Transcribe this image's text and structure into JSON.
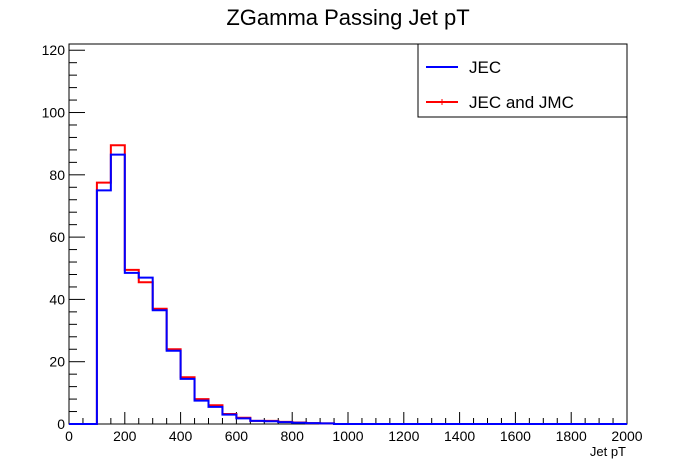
{
  "chart_data": {
    "type": "histogram",
    "title": "ZGamma Passing Jet pT",
    "xlabel": "Jet pT",
    "ylabel": "",
    "xlim": [
      0,
      2000
    ],
    "ylim": [
      0,
      122
    ],
    "bin_width": 50,
    "x_tick_labels": [
      "0",
      "200",
      "400",
      "600",
      "800",
      "1000",
      "1200",
      "1400",
      "1600",
      "1800",
      "2000"
    ],
    "y_tick_labels": [
      "0",
      "20",
      "40",
      "60",
      "80",
      "100",
      "120"
    ],
    "x_bin_edges": [
      0,
      50,
      100,
      150,
      200,
      250,
      300,
      350,
      400,
      450,
      500,
      550,
      600,
      650,
      700,
      750,
      800,
      850,
      900,
      950,
      1000,
      1050,
      1100,
      1150,
      1200,
      1250,
      1300,
      1350,
      1400,
      1450,
      1500,
      1550,
      1600,
      1650,
      1700,
      1750,
      1800,
      1850,
      1900,
      1950,
      2000
    ],
    "series": [
      {
        "name": "JEC and JMC",
        "color": "#ff0000",
        "values": [
          0,
          0,
          77.5,
          89.5,
          49.5,
          45.5,
          37,
          24,
          15,
          8,
          6,
          3.2,
          2,
          1,
          1,
          0.7,
          0.5,
          0.3,
          0.2,
          0,
          0,
          0,
          0,
          0,
          0,
          0,
          0,
          0,
          0,
          0,
          0,
          0,
          0,
          0,
          0,
          0,
          0,
          0,
          0,
          0
        ]
      },
      {
        "name": "JEC",
        "color": "#0000ff",
        "values": [
          0,
          0,
          75,
          86.5,
          48.5,
          47,
          36.5,
          23.5,
          14.5,
          7.5,
          5.5,
          3,
          1.8,
          1,
          0.9,
          0.6,
          0.4,
          0.3,
          0.2,
          0,
          0,
          0,
          0,
          0,
          0,
          0,
          0,
          0,
          0,
          0,
          0,
          0,
          0,
          0,
          0,
          0,
          0,
          0,
          0,
          0
        ]
      }
    ],
    "legend_position": "top-right",
    "grid": false
  }
}
